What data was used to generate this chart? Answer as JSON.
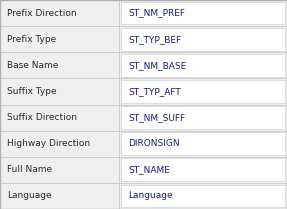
{
  "rows": [
    {
      "label": "Prefix Direction",
      "value": "ST_NM_PREF"
    },
    {
      "label": "Prefix Type",
      "value": "ST_TYP_BEF"
    },
    {
      "label": "Base Name",
      "value": "ST_NM_BASE"
    },
    {
      "label": "Suffix Type",
      "value": "ST_TYP_AFT"
    },
    {
      "label": "Suffix Direction",
      "value": "ST_NM_SUFF"
    },
    {
      "label": "Highway Direction",
      "value": "DIRONSIGN"
    },
    {
      "label": "Full Name",
      "value": "ST_NAME"
    },
    {
      "label": "Language",
      "value": "Language"
    }
  ],
  "bg_color": "#e8e8e8",
  "left_bg": "#efefef",
  "right_bg": "#ffffff",
  "border_color": "#c8c8c8",
  "label_color": "#2a2a2a",
  "value_color": "#1a1a8c",
  "label_font_size": 6.5,
  "value_font_size": 6.5,
  "col_split": 0.415,
  "outer_border_color": "#b0b0b0",
  "fig_width": 2.87,
  "fig_height": 2.09,
  "dpi": 100
}
